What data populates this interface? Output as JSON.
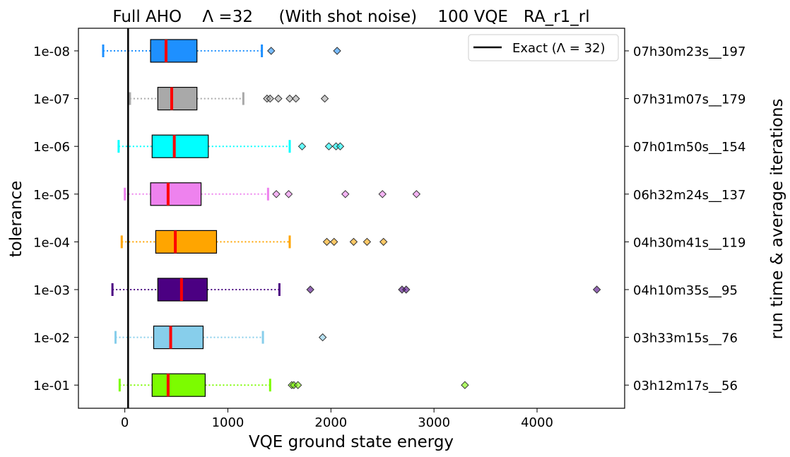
{
  "chart_data": {
    "type": "boxplot",
    "title": "Full AHO    Λ =32     (With shot noise)    100 VQE   RA_r1_rl",
    "xlabel": "VQE ground state energy",
    "ylabel": "tolerance",
    "ylabel_right": "run time & average iterations",
    "xlim": [
      -450,
      4850
    ],
    "xticks": [
      0,
      1000,
      2000,
      3000,
      4000
    ],
    "xtick_labels": [
      "0",
      "1000",
      "2000",
      "3000",
      "4000"
    ],
    "reference_line": {
      "x": 32,
      "label": "Exact (Λ = 32)",
      "color": "#000000"
    },
    "legend": {
      "placement": "top-right",
      "entries": [
        "Exact (Λ = 32)"
      ]
    },
    "grid": false,
    "categories": [
      {
        "tolerance": "1e-08",
        "runtime": "07h30m23s__197",
        "color": "#1e90ff",
        "whisker_low": -210,
        "q1": 250,
        "median": 400,
        "q3": 700,
        "whisker_high": 1330,
        "outliers": [
          1420,
          2060
        ]
      },
      {
        "tolerance": "1e-07",
        "runtime": "07h31m07s__179",
        "color": "#a9a9a9",
        "whisker_low": 50,
        "q1": 320,
        "median": 455,
        "q3": 700,
        "whisker_high": 1150,
        "outliers": [
          1380,
          1410,
          1490,
          1600,
          1660,
          1940
        ]
      },
      {
        "tolerance": "1e-06",
        "runtime": "07h01m50s__154",
        "color": "#00ffff",
        "whisker_low": -60,
        "q1": 265,
        "median": 480,
        "q3": 810,
        "whisker_high": 1600,
        "outliers": [
          1720,
          1980,
          2050,
          2090
        ]
      },
      {
        "tolerance": "1e-05",
        "runtime": "06h32m24s__137",
        "color": "#ee82ee",
        "whisker_low": 0,
        "q1": 250,
        "median": 420,
        "q3": 740,
        "whisker_high": 1390,
        "outliers": [
          1470,
          1590,
          2140,
          2500,
          2830
        ]
      },
      {
        "tolerance": "1e-04",
        "runtime": "04h30m41s__119",
        "color": "#ffa500",
        "whisker_low": -30,
        "q1": 300,
        "median": 490,
        "q3": 890,
        "whisker_high": 1600,
        "outliers": [
          1960,
          2030,
          2220,
          2350,
          2510
        ]
      },
      {
        "tolerance": "1e-03",
        "runtime": "04h10m35s__95",
        "color": "#4b0082",
        "whisker_low": -120,
        "q1": 320,
        "median": 550,
        "q3": 800,
        "whisker_high": 1500,
        "outliers": [
          1800,
          2690,
          2730,
          4580
        ]
      },
      {
        "tolerance": "1e-02",
        "runtime": "03h33m15s__76",
        "color": "#87ceeb",
        "whisker_low": -90,
        "q1": 280,
        "median": 445,
        "q3": 760,
        "whisker_high": 1340,
        "outliers": [
          1920
        ]
      },
      {
        "tolerance": "1e-01",
        "runtime": "03h12m17s__56",
        "color": "#7cfc00",
        "whisker_low": -50,
        "q1": 265,
        "median": 420,
        "q3": 780,
        "whisker_high": 1410,
        "outliers": [
          1620,
          1640,
          1680,
          3300
        ]
      }
    ]
  }
}
